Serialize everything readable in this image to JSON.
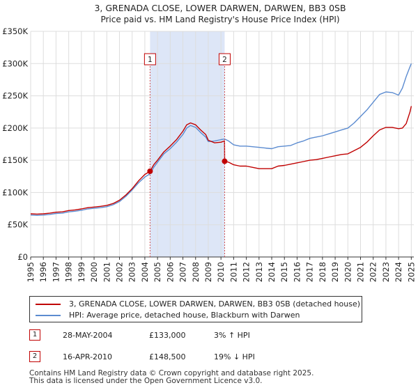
{
  "title_line1": "3, GRENADA CLOSE, LOWER DARWEN, DARWEN, BB3 0SB",
  "title_line2": "Price paid vs. HM Land Registry's House Price Index (HPI)",
  "chart_data": {
    "type": "line",
    "title": "3, GRENADA CLOSE, LOWER DARWEN, DARWEN, BB3 0SB",
    "subtitle": "Price paid vs. HM Land Registry's House Price Index (HPI)",
    "xlabel": "",
    "ylabel": "",
    "xlim": [
      1995,
      2025.2
    ],
    "ylim": [
      0,
      350000
    ],
    "y_ticks": [
      0,
      50000,
      100000,
      150000,
      200000,
      250000,
      300000,
      350000
    ],
    "y_tick_labels": [
      "£0",
      "£50K",
      "£100K",
      "£150K",
      "£200K",
      "£250K",
      "£300K",
      "£350K"
    ],
    "x_ticks": [
      1995,
      1996,
      1997,
      1998,
      1999,
      2000,
      2001,
      2002,
      2003,
      2004,
      2005,
      2006,
      2007,
      2008,
      2009,
      2010,
      2011,
      2012,
      2013,
      2014,
      2015,
      2016,
      2017,
      2018,
      2019,
      2020,
      2021,
      2022,
      2023,
      2024,
      2025
    ],
    "x_tick_labels": [
      "1995",
      "1996",
      "1997",
      "1998",
      "1999",
      "2000",
      "2001",
      "2002",
      "2003",
      "2004",
      "2005",
      "2006",
      "2007",
      "2008",
      "2009",
      "2010",
      "2011",
      "2012",
      "2013",
      "2014",
      "2015",
      "2016",
      "2017",
      "2018",
      "2019",
      "2020",
      "2021",
      "2022",
      "2023",
      "2024",
      "2025"
    ],
    "grid": true,
    "legend_position": "below",
    "shaded_span": {
      "start": 2004.41,
      "end": 2010.29,
      "color": "#dde6f7"
    },
    "series": [
      {
        "name": "3, GRENADA CLOSE, LOWER DARWEN, DARWEN, BB3 0SB (detached house)",
        "color": "#c00000",
        "x": [
          1995,
          1995.5,
          1996,
          1996.5,
          1997,
          1997.5,
          1998,
          1998.5,
          1999,
          1999.5,
          2000,
          2000.5,
          2001,
          2001.5,
          2002,
          2002.5,
          2003,
          2003.5,
          2004,
          2004.41,
          2004.7,
          2005,
          2005.5,
          2006,
          2006.5,
          2007,
          2007.3,
          2007.6,
          2008,
          2008.4,
          2008.8,
          2009,
          2009.5,
          2010,
          2010.28,
          2010.29,
          2010.6,
          2011,
          2011.5,
          2012,
          2012.5,
          2013,
          2013.5,
          2014,
          2014.5,
          2015,
          2015.5,
          2016,
          2016.5,
          2017,
          2017.5,
          2018,
          2018.5,
          2019,
          2019.5,
          2020,
          2020.5,
          2021,
          2021.5,
          2022,
          2022.5,
          2023,
          2023.5,
          2024,
          2024.3,
          2024.6,
          2024.9,
          2025
        ],
        "values": [
          67000,
          66500,
          67000,
          68000,
          69500,
          70000,
          72000,
          73000,
          74500,
          76500,
          77500,
          78500,
          80000,
          83000,
          88000,
          96000,
          106000,
          118000,
          128000,
          133000,
          143000,
          150000,
          163000,
          172000,
          182000,
          195000,
          205000,
          208000,
          205000,
          197000,
          190000,
          181000,
          177000,
          178000,
          180000,
          148500,
          147000,
          143000,
          141000,
          141000,
          139000,
          137000,
          137000,
          137000,
          141000,
          142000,
          144000,
          146000,
          148000,
          150000,
          151000,
          153000,
          155000,
          157000,
          159000,
          160000,
          165000,
          170000,
          178000,
          188000,
          197000,
          201000,
          201000,
          199000,
          200000,
          207000,
          225000,
          234000
        ]
      },
      {
        "name": "HPI: Average price, detached house, Blackburn with Darwen",
        "color": "#5b8bd0",
        "x": [
          1995,
          1995.5,
          1996,
          1996.5,
          1997,
          1997.5,
          1998,
          1998.5,
          1999,
          1999.5,
          2000,
          2000.5,
          2001,
          2001.5,
          2002,
          2002.5,
          2003,
          2003.5,
          2004,
          2004.41,
          2004.7,
          2005,
          2005.5,
          2006,
          2006.5,
          2007,
          2007.3,
          2007.6,
          2008,
          2008.4,
          2008.8,
          2009,
          2009.5,
          2010,
          2010.29,
          2010.6,
          2011,
          2011.5,
          2012,
          2012.5,
          2013,
          2013.5,
          2014,
          2014.5,
          2015,
          2015.5,
          2016,
          2016.5,
          2017,
          2017.5,
          2018,
          2018.5,
          2019,
          2019.5,
          2020,
          2020.5,
          2021,
          2021.5,
          2022,
          2022.5,
          2023,
          2023.5,
          2024,
          2024.3,
          2024.6,
          2024.9,
          2025
        ],
        "values": [
          65000,
          64500,
          65000,
          66000,
          67500,
          68000,
          70000,
          71000,
          72500,
          74500,
          75500,
          76500,
          78000,
          81000,
          86000,
          94000,
          104000,
          115000,
          124000,
          129000,
          139000,
          147000,
          160000,
          168000,
          178000,
          190000,
          200000,
          204000,
          201000,
          193000,
          186000,
          179000,
          180000,
          182000,
          183000,
          180000,
          174000,
          172000,
          172000,
          171000,
          170000,
          169000,
          168000,
          171000,
          172000,
          173000,
          177000,
          180000,
          184000,
          186000,
          188000,
          191000,
          194000,
          197000,
          200000,
          208000,
          218000,
          228000,
          240000,
          252000,
          256000,
          255000,
          251000,
          262000,
          280000,
          295000,
          300000
        ]
      }
    ],
    "annotations": [
      {
        "label": "1",
        "x": 2004.41,
        "value": 133000
      },
      {
        "label": "2",
        "x": 2010.29,
        "value": 148500
      }
    ]
  },
  "legend": {
    "items": [
      {
        "label": "3, GRENADA CLOSE, LOWER DARWEN, DARWEN, BB3 0SB (detached house)",
        "color": "#c00000"
      },
      {
        "label": "HPI: Average price, detached house, Blackburn with Darwen",
        "color": "#5b8bd0"
      }
    ]
  },
  "transactions": [
    {
      "id": "1",
      "date": "28-MAY-2004",
      "price": "£133,000",
      "hpi": "3% ↑ HPI"
    },
    {
      "id": "2",
      "date": "16-APR-2010",
      "price": "£148,500",
      "hpi": "19% ↓ HPI"
    }
  ],
  "footer": {
    "line1": "Contains HM Land Registry data © Crown copyright and database right 2025.",
    "line2": "This data is licensed under the Open Government Licence v3.0."
  }
}
